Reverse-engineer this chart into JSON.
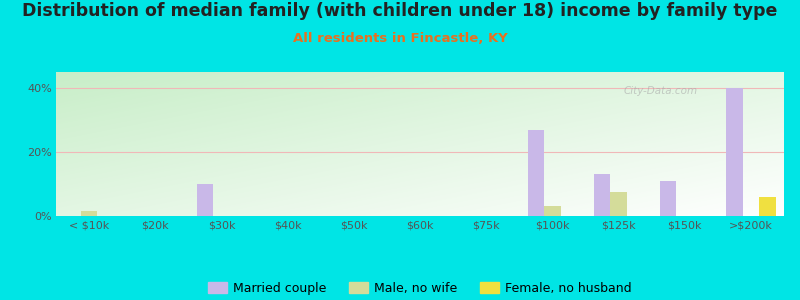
{
  "title": "Distribution of median family (with children under 18) income by family type",
  "subtitle": "All residents in Fincastle, KY",
  "categories": [
    "< $10k",
    "$20k",
    "$30k",
    "$40k",
    "$50k",
    "$60k",
    "$75k",
    "$100k",
    "$125k",
    "$150k",
    ">$200k"
  ],
  "married_couple": [
    0,
    0,
    10,
    0,
    0,
    0,
    0,
    27,
    13,
    11,
    40
  ],
  "male_no_wife": [
    1.5,
    0,
    0,
    0,
    0,
    0,
    0,
    3,
    7.5,
    0,
    0
  ],
  "female_no_husb": [
    0,
    0,
    0,
    0,
    0,
    0,
    0,
    0,
    0,
    0,
    6
  ],
  "married_color": "#c9b8e8",
  "male_color": "#d4dc9a",
  "female_color": "#f0e040",
  "outer_bg": "#00e5e5",
  "plot_bg_top_left": "#c8eec8",
  "plot_bg_bottom_right": "#f0faf0",
  "grid_color": "#f0b8b8",
  "ylim": [
    0,
    45
  ],
  "yticks": [
    0,
    20,
    40
  ],
  "yticklabels": [
    "0%",
    "20%",
    "40%"
  ],
  "title_fontsize": 12.5,
  "subtitle_fontsize": 9.5,
  "subtitle_color": "#e87020",
  "tick_fontsize": 8,
  "legend_fontsize": 9,
  "bar_width": 0.25,
  "watermark": "City-Data.com"
}
